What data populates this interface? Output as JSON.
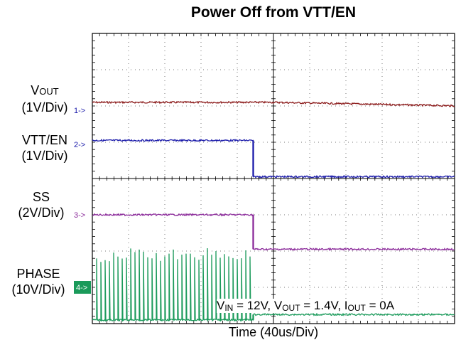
{
  "chart_data": {
    "type": "line",
    "title": "Power Off from VTT/EN",
    "xlabel": "Time (40us/Div)",
    "x_divisions": 10,
    "y_divisions": 8,
    "grid": true,
    "annotation": {
      "vin": "IN",
      "vin_val": " = 12V, V",
      "vout": "OUT",
      "vout_val": " = 1.4V, I",
      "iout": "OUT",
      "iout_val": " = 0A"
    },
    "series": [
      {
        "id": "ch1",
        "name": "VOUT",
        "scale": "(1V/Div)",
        "marker": "1->",
        "color": "#8b1a1a",
        "level_before": 6.1,
        "level_after": 5.3,
        "transition_div": null
      },
      {
        "id": "ch2",
        "name": "VOUT",
        "scale": "(1V/Div)",
        "marker": "2->",
        "color": "#1a1aaa",
        "level_before": 5.05,
        "level_after": 4.05,
        "transition_div": 4.45
      },
      {
        "id": "ch3",
        "name": "VTT/EN",
        "scale": "(1V/Div)",
        "marker": "3->",
        "color": "#8b2a9a",
        "level_before": 3.0,
        "level_after": 2.05,
        "transition_div": 4.45
      },
      {
        "id": "ch4",
        "name": "PHASE",
        "scale": "(10V/Div)",
        "marker": "4->",
        "color": "#1a9a5a",
        "level_before": 0.1,
        "level_after": 0.25,
        "transition_div": 4.45
      }
    ],
    "labels": {
      "vout_main": "V",
      "vout_sub": "OUT",
      "vout_scale": "(1V/Div)",
      "vtt": "VTT/EN",
      "vtt_scale": "(1V/Div)",
      "ss": "SS",
      "ss_scale": "(2V/Div)",
      "phase": "PHASE",
      "phase_scale": "(10V/Div)"
    },
    "markers": [
      "1->",
      "2->",
      "3->",
      "4->"
    ]
  }
}
